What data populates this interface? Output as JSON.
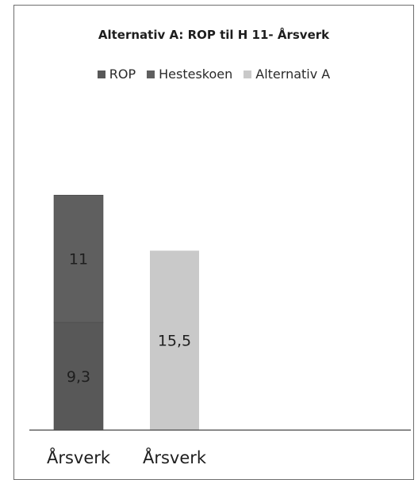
{
  "chart_data": {
    "type": "bar",
    "title": "Alternativ A: ROP til H 11- Årsverk",
    "categories": [
      "Årsverk",
      "Årsverk"
    ],
    "series": [
      {
        "name": "ROP",
        "values": [
          9.3,
          null
        ],
        "labels": [
          "9,3",
          ""
        ],
        "color": "#585858"
      },
      {
        "name": "Hesteskoen",
        "values": [
          11,
          null
        ],
        "labels": [
          "11",
          ""
        ],
        "color": "#5f5f5f"
      },
      {
        "name": "Alternativ A",
        "values": [
          null,
          15.5
        ],
        "labels": [
          "",
          "15,5"
        ],
        "color": "#c9c9c9"
      }
    ],
    "stacked": true,
    "ylim": [
      0,
      26
    ],
    "legend_position": "top",
    "grid": false,
    "xlabel": "",
    "ylabel": ""
  }
}
